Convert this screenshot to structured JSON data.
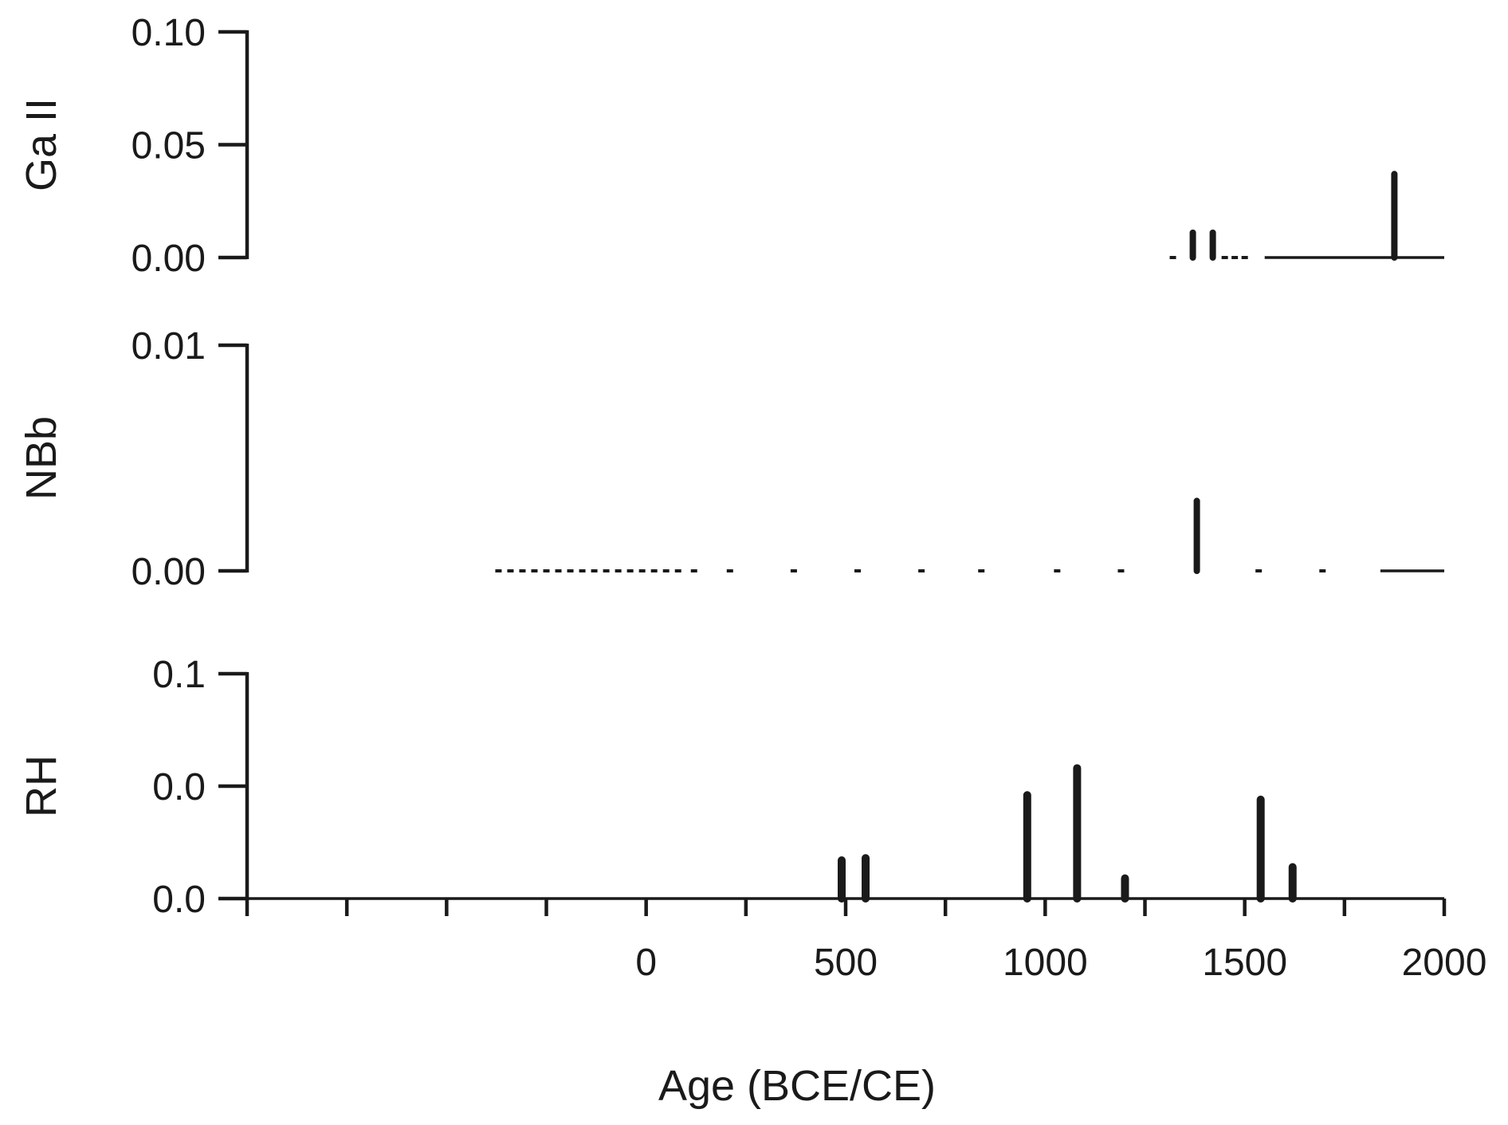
{
  "chart_data": {
    "type": "bar",
    "xlabel": "Age (BCE/CE)",
    "xlim": [
      -1000,
      2000
    ],
    "x_tick_values": [
      -1000,
      -750,
      -500,
      -250,
      0,
      250,
      500,
      750,
      1000,
      1250,
      1500,
      1750,
      2000
    ],
    "x_tick_labels": [
      {
        "value": 0,
        "label": "0"
      },
      {
        "value": 500,
        "label": "500"
      },
      {
        "value": 1000,
        "label": "1000"
      },
      {
        "value": 1500,
        "label": "1500"
      },
      {
        "value": 2000,
        "label": "2000"
      }
    ],
    "panels": [
      {
        "ylabel": "Ga II",
        "ylim": [
          0,
          0.1
        ],
        "y_ticks": [
          {
            "value": 0,
            "label": "0.00"
          },
          {
            "value": 0.05,
            "label": "0.05"
          },
          {
            "value": 0.1,
            "label": "0.10"
          }
        ],
        "bars": [
          {
            "x": 1320,
            "y": 0.001
          },
          {
            "x": 1370,
            "y": 0.011
          },
          {
            "x": 1420,
            "y": 0.011
          },
          {
            "x": 1450,
            "y": 0.0005
          },
          {
            "x": 1475,
            "y": 0.0005
          },
          {
            "x": 1500,
            "y": 0.0005
          },
          {
            "x": 1875,
            "y": 0.037
          }
        ],
        "baseline_segments": [
          [
            1550,
            2000
          ]
        ]
      },
      {
        "ylabel": "NBb",
        "ylim": [
          0,
          0.01
        ],
        "y_ticks": [
          {
            "value": 0,
            "label": "0.00"
          },
          {
            "value": 0.01,
            "label": "0.01"
          }
        ],
        "bars": [
          {
            "x": -370,
            "y": 5e-05
          },
          {
            "x": -340,
            "y": 5e-05
          },
          {
            "x": -310,
            "y": 5e-05
          },
          {
            "x": -280,
            "y": 5e-05
          },
          {
            "x": -250,
            "y": 5e-05
          },
          {
            "x": -220,
            "y": 5e-05
          },
          {
            "x": -190,
            "y": 5e-05
          },
          {
            "x": -160,
            "y": 5e-05
          },
          {
            "x": -130,
            "y": 5e-05
          },
          {
            "x": -100,
            "y": 5e-05
          },
          {
            "x": -70,
            "y": 5e-05
          },
          {
            "x": -40,
            "y": 5e-05
          },
          {
            "x": -10,
            "y": 5e-05
          },
          {
            "x": 20,
            "y": 5e-05
          },
          {
            "x": 50,
            "y": 5e-05
          },
          {
            "x": 80,
            "y": 5e-05
          },
          {
            "x": 120,
            "y": 5e-05
          },
          {
            "x": 210,
            "y": 5e-05
          },
          {
            "x": 370,
            "y": 5e-05
          },
          {
            "x": 530,
            "y": 5e-05
          },
          {
            "x": 690,
            "y": 5e-05
          },
          {
            "x": 840,
            "y": 5e-05
          },
          {
            "x": 1030,
            "y": 5e-05
          },
          {
            "x": 1190,
            "y": 5e-05
          },
          {
            "x": 1380,
            "y": 0.0031
          },
          {
            "x": 1535,
            "y": 5e-05
          },
          {
            "x": 1695,
            "y": 5e-05
          }
        ],
        "baseline_segments": [
          [
            1840,
            2000
          ]
        ]
      },
      {
        "ylabel": "RH",
        "ylim": [
          0,
          0.1
        ],
        "y_ticks": [
          {
            "value": 0,
            "label": "0.0"
          },
          {
            "value": 0.05,
            "label": "0.0"
          },
          {
            "value": 0.1,
            "label": "0.1"
          }
        ],
        "bars": [
          {
            "x": 490,
            "y": 0.017
          },
          {
            "x": 550,
            "y": 0.018
          },
          {
            "x": 955,
            "y": 0.046
          },
          {
            "x": 1080,
            "y": 0.058
          },
          {
            "x": 1200,
            "y": 0.009
          },
          {
            "x": 1540,
            "y": 0.044
          },
          {
            "x": 1620,
            "y": 0.014
          }
        ],
        "baseline_segments": [
          [
            -1000,
            2000
          ]
        ]
      }
    ]
  }
}
